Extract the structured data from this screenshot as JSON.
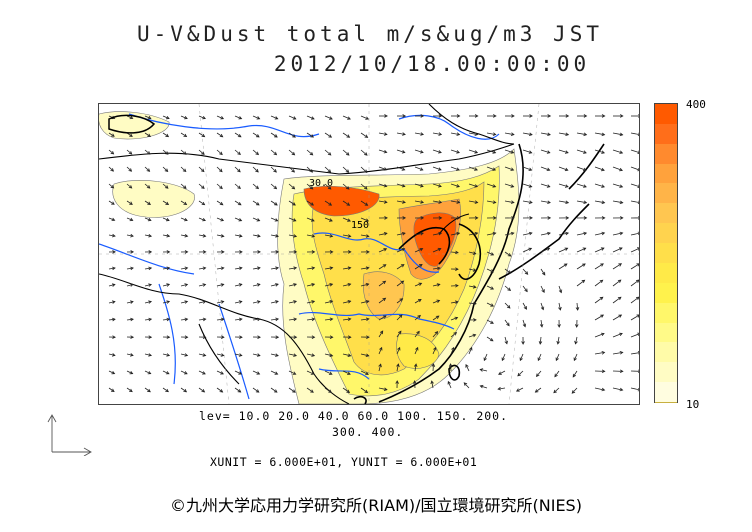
{
  "title": {
    "line1": "U-V&Dust total m/s&ug/m3 JST",
    "line2": "2012/10/18.00:00:00"
  },
  "colorbar": {
    "max_label": "400",
    "min_label": "10",
    "colors": [
      "#ff5a00",
      "#ff6e1a",
      "#ff8a2e",
      "#ffa23c",
      "#ffb448",
      "#ffc650",
      "#ffd34e",
      "#ffdf4a",
      "#ffea48",
      "#fff24c",
      "#fff76a",
      "#fffa88",
      "#fffba8",
      "#fffcc4",
      "#fffde0"
    ]
  },
  "levels": {
    "line1": "lev= 10.0 20.0 40.0 60.0 100. 150. 200.",
    "line2": "300. 400."
  },
  "units": "XUNIT = 6.000E+01, YUNIT = 6.000E+01",
  "credit": "©九州大学応用力学研究所(RIAM)/国立環境研究所(NIES)",
  "contour_labels": [
    "30.0",
    "150"
  ]
}
